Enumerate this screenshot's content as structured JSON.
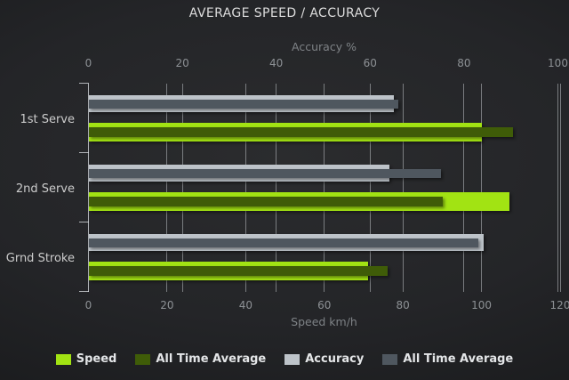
{
  "chart_data": {
    "type": "bar",
    "orientation": "horizontal",
    "title": "AVERAGE SPEED / ACCURACY",
    "categories": [
      "1st Serve",
      "2nd Serve",
      "Grnd Stroke"
    ],
    "axes": {
      "top": {
        "label": "Accuracy %",
        "min": 0,
        "max": 100,
        "ticks": [
          0,
          20,
          40,
          60,
          80,
          100
        ]
      },
      "bottom": {
        "label": "Speed km/h",
        "min": 0,
        "max": 120,
        "ticks": [
          0,
          20,
          40,
          60,
          80,
          100,
          120
        ]
      }
    },
    "series": [
      {
        "name": "Speed",
        "axis": "bottom",
        "color": "#a2e313",
        "values": [
          100,
          107,
          71
        ]
      },
      {
        "name": "All Time Average",
        "axis": "bottom",
        "color": "#3f5c08",
        "values": [
          108,
          90,
          76
        ]
      },
      {
        "name": "Accuracy",
        "axis": "top",
        "color": "#bdc3c9",
        "values": [
          65,
          64,
          84
        ]
      },
      {
        "name": "All Time Average",
        "axis": "top",
        "color": "#4f575f",
        "values": [
          66,
          75,
          83
        ]
      }
    ],
    "legend": {
      "position": "bottom",
      "entries": [
        "Speed",
        "All Time Average",
        "Accuracy",
        "All Time Average"
      ]
    },
    "grid": true,
    "colors": {
      "background": "#242528",
      "gridline": "#9ba0a4",
      "title_text": "#dcdcdc",
      "muted_text": "#7e8286",
      "tick_text": "#8d9195",
      "category_text": "#cccccc",
      "legend_text": "#e4e6e8"
    }
  }
}
